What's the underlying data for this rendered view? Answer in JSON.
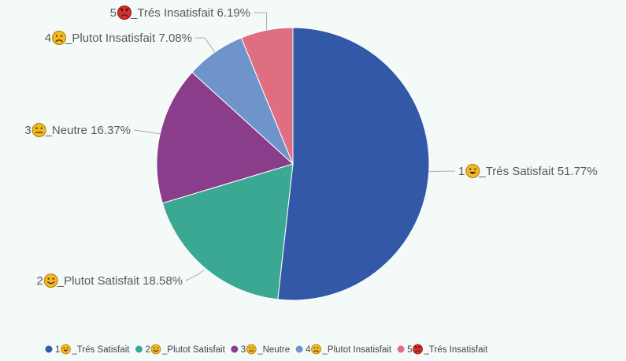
{
  "chart_data": {
    "type": "pie",
    "title": "",
    "legend_position": "bottom-center",
    "slices": [
      {
        "num": "1",
        "face": "happy",
        "text": "_Trés Satisfait",
        "pct": "51.77%",
        "value": 51.77,
        "color": "#3358a8"
      },
      {
        "num": "2",
        "face": "smile",
        "text": "_Plutot Satisfait",
        "pct": "18.58%",
        "value": 18.58,
        "color": "#3aa892"
      },
      {
        "num": "3",
        "face": "neutral",
        "text": "_Neutre",
        "pct": "16.37%",
        "value": 16.37,
        "color": "#8a3d8a"
      },
      {
        "num": "4",
        "face": "frown",
        "text": "_Plutot Insatisfait",
        "pct": "7.08%",
        "value": 7.08,
        "color": "#6f94c9"
      },
      {
        "num": "5",
        "face": "angry",
        "text": "_Trés Insatisfait",
        "pct": "6.19%",
        "value": 6.19,
        "color": "#df6e80"
      }
    ]
  }
}
